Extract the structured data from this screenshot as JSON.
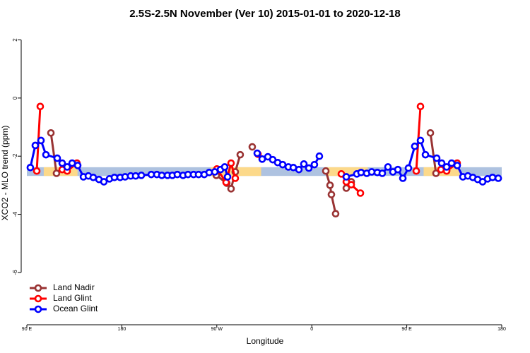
{
  "chart_data": {
    "type": "line",
    "title": "2.5S-2.5N November (Ver 10)   2015-01-01 to 2020-12-18",
    "x_label": "Longitude",
    "y_label": "XCO2 - MLO trend (ppm)",
    "xlim": [
      90,
      540
    ],
    "ylim": [
      -7.8,
      2.45
    ],
    "xticks": [
      {
        "value": 90,
        "label": "90 E"
      },
      {
        "value": 180,
        "label": "180"
      },
      {
        "value": 270,
        "label": "90 W"
      },
      {
        "value": 360,
        "label": "0"
      },
      {
        "value": 450,
        "label": "90 E"
      },
      {
        "value": 540,
        "label": "180"
      }
    ],
    "yticks": [
      2,
      0,
      -2,
      -4,
      -6
    ],
    "legend": "bottomleft",
    "band_y": [
      -2.68,
      -2.38
    ],
    "band_color": "#aec2e0",
    "land_color": "#fcd98a",
    "land_x": [
      [
        106,
        138
      ],
      [
        264,
        312
      ],
      [
        374,
        413
      ],
      [
        466,
        500
      ]
    ],
    "series": [
      {
        "name": "Land Nadir",
        "color": "#993333",
        "x": [
          112.8,
          118.1,
          120,
          269.5,
          279.5,
          283.5,
          287.5,
          292.2,
          298,
          303.6,
          340,
          373.3,
          377.3,
          378.6,
          382.6,
          388,
          392.7,
          397.4,
          430,
          472.4,
          477.7,
          487.8
        ],
        "values": [
          -1.2,
          -2.59,
          null,
          -2.66,
          -2.93,
          -3.12,
          -2.54,
          -1.95,
          null,
          -1.68,
          null,
          -2.51,
          -3.0,
          -3.32,
          -3.98,
          null,
          -3.1,
          -2.88,
          null,
          -1.2,
          -2.59,
          -2.49
        ]
      },
      {
        "name": "Land Glint",
        "color": "#ff0000",
        "x": [
          99.4,
          102.7,
          110,
          123.5,
          128.2,
          137.5,
          200,
          270.1,
          278.8,
          283.5,
          287.5,
          300,
          309,
          350,
          388,
          392.7,
          397.4,
          406.1,
          430,
          459,
          463,
          470,
          482.4,
          487.8,
          497.8
        ],
        "values": [
          -2.51,
          -0.29,
          null,
          -2.46,
          -2.51,
          -2.24,
          null,
          -2.44,
          -2.9,
          -2.24,
          -2.76,
          null,
          -1.93,
          null,
          -2.61,
          -2.88,
          -2.98,
          -3.27,
          null,
          -2.51,
          -0.29,
          null,
          -2.46,
          -2.51,
          -2.24
        ]
      },
      {
        "name": "Ocean Glint",
        "color": "#0000ff",
        "x": [
          93.3,
          98,
          103.4,
          108.1,
          118.8,
          123.5,
          128.2,
          132.9,
          138.2,
          143.6,
          148.3,
          152.9,
          158.3,
          163,
          168.3,
          173,
          178.4,
          183.1,
          188.4,
          193.1,
          198.5,
          207.9,
          213.2,
          217.9,
          223.3,
          227.9,
          232.6,
          238,
          242.7,
          248,
          252.7,
          258.1,
          262.8,
          268.1,
          273.5,
          277.5,
          280.2,
          295,
          308.3,
          313,
          318.4,
          323,
          327.7,
          332.4,
          337.8,
          342.5,
          347.8,
          352.5,
          357.2,
          362.5,
          367.2,
          380,
          392.7,
          402.7,
          406.7,
          412.1,
          416.8,
          422.1,
          426.8,
          432.2,
          436.9,
          441.6,
          446.3,
          451.6,
          457.6,
          463,
          467.7,
          478.4,
          483.1,
          487.8,
          492.5,
          497.8,
          503.2,
          507.9,
          512.6,
          517.2,
          521.9,
          526.6,
          531.3,
          536.7
        ],
        "values": [
          -2.39,
          -1.63,
          -1.46,
          -1.95,
          -2.07,
          -2.24,
          -2.37,
          -2.24,
          -2.32,
          -2.71,
          -2.68,
          -2.73,
          -2.8,
          -2.88,
          -2.78,
          -2.73,
          -2.73,
          -2.71,
          -2.68,
          -2.68,
          -2.66,
          -2.63,
          -2.63,
          -2.66,
          -2.66,
          -2.66,
          -2.63,
          -2.66,
          -2.63,
          -2.63,
          -2.63,
          -2.63,
          -2.56,
          -2.54,
          -2.46,
          -2.37,
          -2.71,
          null,
          -1.9,
          -2.1,
          -2.02,
          -2.12,
          -2.22,
          -2.29,
          -2.37,
          -2.39,
          -2.46,
          -2.27,
          -2.41,
          -2.29,
          -2.0,
          null,
          -2.71,
          -2.61,
          -2.56,
          -2.59,
          -2.54,
          -2.56,
          -2.59,
          -2.37,
          -2.54,
          -2.46,
          -2.76,
          -2.41,
          -1.66,
          -1.46,
          -1.95,
          -2.07,
          -2.24,
          -2.37,
          -2.24,
          -2.32,
          -2.71,
          -2.68,
          -2.73,
          -2.8,
          -2.88,
          -2.78,
          -2.73,
          -2.76
        ]
      }
    ]
  }
}
